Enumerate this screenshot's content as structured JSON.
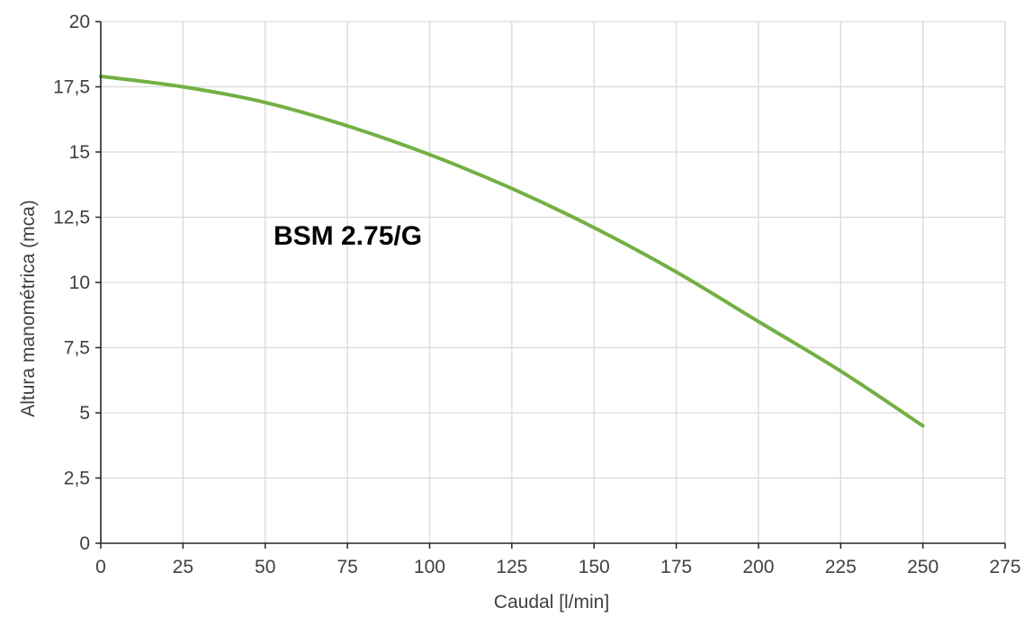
{
  "chart_data": {
    "type": "line",
    "title": "",
    "annotation": "BSM 2.75/G",
    "xlabel": "Caudal [l/min]",
    "ylabel": "Altura manométrica (mca)",
    "xlim": [
      0,
      275
    ],
    "ylim": [
      0,
      20
    ],
    "x_ticks": [
      "0",
      "25",
      "50",
      "75",
      "100",
      "125",
      "150",
      "175",
      "200",
      "225",
      "250",
      "275"
    ],
    "y_ticks": [
      "0",
      "2,5",
      "5",
      "7,5",
      "10",
      "12,5",
      "15",
      "17,5",
      "20"
    ],
    "grid": true,
    "series": [
      {
        "name": "",
        "color": "#72b043",
        "x": [
          0,
          25,
          50,
          75,
          100,
          125,
          150,
          175,
          200,
          225,
          250
        ],
        "y": [
          17.9,
          17.5,
          16.9,
          16.0,
          14.9,
          13.6,
          12.1,
          10.4,
          8.5,
          6.6,
          4.5
        ]
      }
    ],
    "colors": {
      "grid": "#d9d9d9",
      "axis": "#262626",
      "text": "#404040",
      "annotation": "#000000"
    }
  }
}
